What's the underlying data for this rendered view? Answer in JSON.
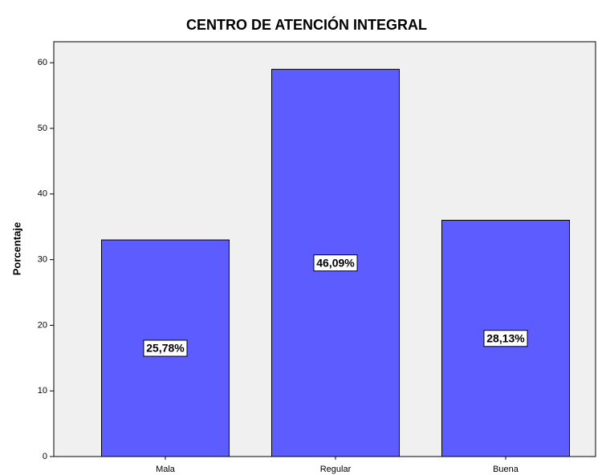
{
  "chart_data": {
    "type": "bar",
    "title": "CENTRO DE ATENCIÓN INTEGRAL",
    "y_label": "Porcentaje",
    "categories": [
      "Mala",
      "Regular",
      "Buena"
    ],
    "values": [
      33,
      59,
      36
    ],
    "annotations": [
      "25,78%",
      "46,09%",
      "28,13%"
    ],
    "color": "#5c5cff",
    "ylim": [
      0,
      63.2
    ],
    "yticks": [
      0,
      10,
      20,
      30,
      40,
      50,
      60
    ],
    "grid": false
  }
}
